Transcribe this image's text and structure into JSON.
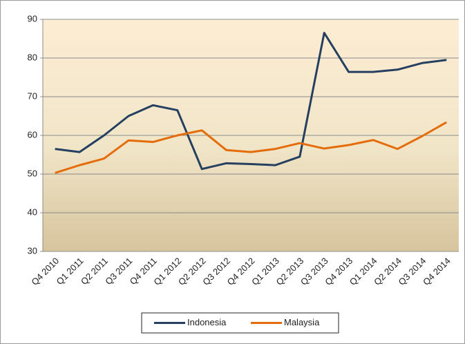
{
  "chart_data": {
    "type": "line",
    "categories": [
      "Q4 2010",
      "Q1 2011",
      "Q2 2011",
      "Q3 2011",
      "Q4 2011",
      "Q1 2012",
      "Q2 2012",
      "Q3 2012",
      "Q4 2012",
      "Q1 2013",
      "Q2 2013",
      "Q3 2013",
      "Q4 2013",
      "Q1 2014",
      "Q2 2014",
      "Q3 2014",
      "Q4 2014"
    ],
    "series": [
      {
        "name": "Indonesia",
        "color": "#243f60",
        "values": [
          56.5,
          55.7,
          60,
          65,
          67.8,
          66.5,
          51.3,
          52.8,
          52.6,
          52.3,
          54.5,
          86.5,
          76.4,
          76.4,
          77,
          78.7,
          79.5
        ]
      },
      {
        "name": "Malaysia",
        "color": "#e46c0a",
        "values": [
          50.3,
          52.3,
          54,
          58.7,
          58.3,
          60,
          61.3,
          56.2,
          55.7,
          56.5,
          58,
          56.6,
          57.5,
          58.8,
          56.5,
          59.8,
          63.4
        ]
      }
    ],
    "ylim": [
      30,
      90
    ],
    "yticks": [
      30,
      40,
      50,
      60,
      70,
      80,
      90
    ],
    "grid": true,
    "legend": "bottom"
  }
}
